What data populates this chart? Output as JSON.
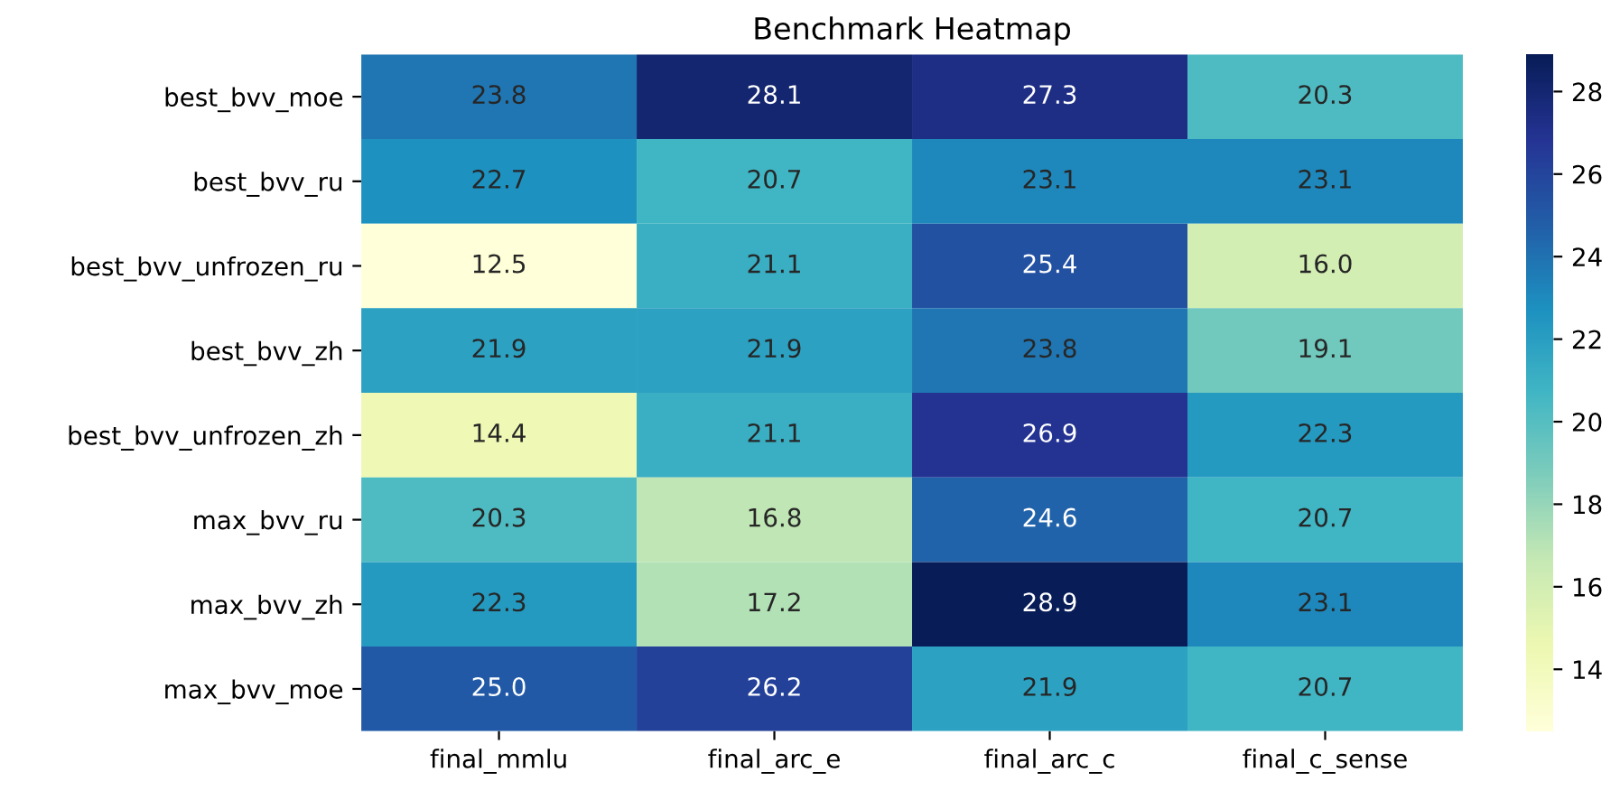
{
  "chart_data": {
    "type": "heatmap",
    "title": "Benchmark Heatmap",
    "categories": [
      "final_mmlu",
      "final_arc_e",
      "final_arc_c",
      "final_c_sense"
    ],
    "y_categories": [
      "best_bvv_moe",
      "best_bvv_ru",
      "best_bvv_unfrozen_ru",
      "best_bvv_zh",
      "best_bvv_unfrozen_zh",
      "max_bvv_ru",
      "max_bvv_zh",
      "max_bvv_moe"
    ],
    "cells": [
      [
        23.8,
        28.1,
        27.3,
        20.3
      ],
      [
        22.7,
        20.7,
        23.1,
        23.1
      ],
      [
        12.5,
        21.1,
        25.4,
        16.0
      ],
      [
        21.9,
        21.9,
        23.8,
        19.1
      ],
      [
        14.4,
        21.1,
        26.9,
        22.3
      ],
      [
        20.3,
        16.8,
        24.6,
        20.7
      ],
      [
        22.3,
        17.2,
        28.9,
        23.1
      ],
      [
        25.0,
        26.2,
        21.9,
        20.7
      ]
    ],
    "cell_labels": [
      [
        "23.8",
        "28.1",
        "27.3",
        "20.3"
      ],
      [
        "22.7",
        "20.7",
        "23.1",
        "23.1"
      ],
      [
        "12.5",
        "21.1",
        "25.4",
        "16.0"
      ],
      [
        "21.9",
        "21.9",
        "23.8",
        "19.1"
      ],
      [
        "14.4",
        "21.1",
        "26.9",
        "22.3"
      ],
      [
        "20.3",
        "16.8",
        "24.6",
        "20.7"
      ],
      [
        "22.3",
        "17.2",
        "28.9",
        "23.1"
      ],
      [
        "25.0",
        "26.2",
        "21.9",
        "20.7"
      ]
    ],
    "clim": [
      12.5,
      28.9
    ],
    "cticks": [
      14,
      16,
      18,
      20,
      22,
      24,
      26,
      28
    ]
  }
}
